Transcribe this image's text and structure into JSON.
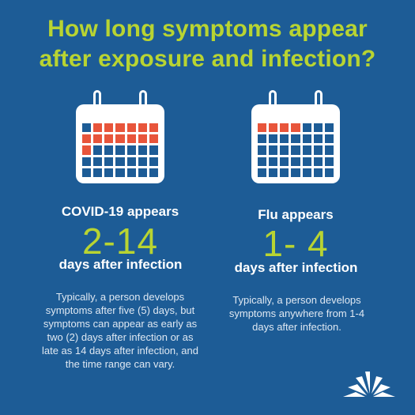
{
  "title": {
    "line1": "How long symptoms appear",
    "line2": "after exposure and infection?"
  },
  "covid": {
    "heading": "COVID-19 appears",
    "range": "2-14",
    "subheading": "days after infection",
    "note": "Typically, a person develops symptoms after five (5) days, but symptoms can appear as early as two (2) days after infection or as late as 14 days after infection, and the time range can vary.",
    "highlighted_days": 14,
    "highlight_start": 1
  },
  "flu": {
    "heading": "Flu appears",
    "range": "1- 4",
    "subheading": "days after infection",
    "note": "Typically, a person develops symptoms anywhere from 1-4 days after infection.",
    "highlighted_days": 4,
    "highlight_start": 0
  },
  "colors": {
    "background": "#1d5c96",
    "title": "#b8d432",
    "highlight": "#e8553b",
    "calendar": "#ffffff"
  }
}
